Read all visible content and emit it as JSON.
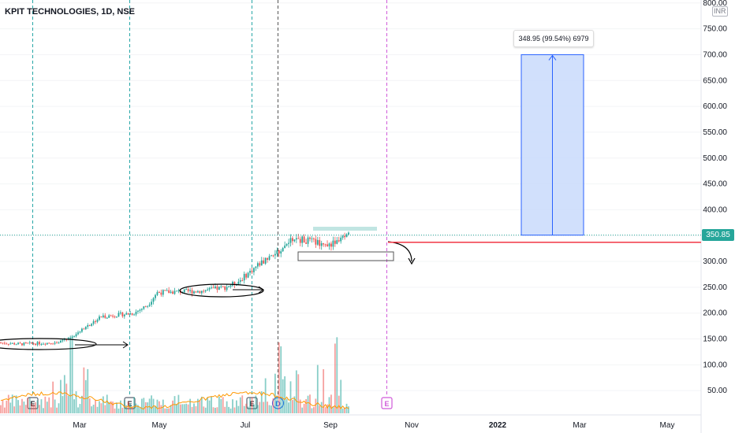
{
  "header": {
    "title": "KPIT TECHNOLOGIES, 1D, NSE",
    "currency": "INR"
  },
  "colors": {
    "up": "#26a69a",
    "down": "#ef5350",
    "ma": "#ff9800",
    "support": "#f23645",
    "measure_fill": "#c9dbfb",
    "measure_line": "#2962ff",
    "price_tag": "#26a69a",
    "earnings_dash": "#26a6a6",
    "dividend_dash": "#555555",
    "future_dash": "#d05ad9"
  },
  "last_price": "350.85",
  "measure": {
    "label": "348.95 (99.54%) 6979",
    "from": 350.85,
    "to": 700
  },
  "support_level": 337,
  "events": [
    {
      "label": "E",
      "x": "2021-02-10",
      "kind": "earnings"
    },
    {
      "label": "E",
      "x": "2021-04-22",
      "kind": "earnings"
    },
    {
      "label": "E",
      "x": "2021-07-20",
      "kind": "earnings"
    },
    {
      "label": "D",
      "x": "2021-08-08",
      "kind": "dividend"
    },
    {
      "label": "E",
      "x": "2021-10-27",
      "kind": "future-earnings"
    }
  ],
  "chart_data": {
    "type": "candlestick",
    "title": "KPIT TECHNOLOGIES, 1D, NSE",
    "xlabels": [
      "Mar",
      "May",
      "Jul",
      "Sep",
      "Nov",
      "2022",
      "Mar",
      "May"
    ],
    "yticks": [
      50,
      100,
      150,
      200,
      250,
      300,
      350,
      400,
      450,
      500,
      550,
      600,
      650,
      700,
      750,
      800
    ],
    "ylim": [
      0,
      800
    ],
    "price_path": [
      {
        "x": "2021-01-05",
        "y": 145
      },
      {
        "x": "2021-02-01",
        "y": 140
      },
      {
        "x": "2021-02-25",
        "y": 143
      },
      {
        "x": "2021-03-08",
        "y": 150
      },
      {
        "x": "2021-03-18",
        "y": 168
      },
      {
        "x": "2021-04-01",
        "y": 193
      },
      {
        "x": "2021-04-25",
        "y": 200
      },
      {
        "x": "2021-05-05",
        "y": 215
      },
      {
        "x": "2021-05-12",
        "y": 240
      },
      {
        "x": "2021-06-15",
        "y": 243
      },
      {
        "x": "2021-07-01",
        "y": 250
      },
      {
        "x": "2021-07-10",
        "y": 260
      },
      {
        "x": "2021-07-28",
        "y": 300
      },
      {
        "x": "2021-08-10",
        "y": 320
      },
      {
        "x": "2021-08-20",
        "y": 345
      },
      {
        "x": "2021-09-15",
        "y": 332
      },
      {
        "x": "2021-09-30",
        "y": 350
      }
    ],
    "volume_peaks": [
      "2021-03-10",
      "2021-08-10",
      "2021-09-20"
    ]
  }
}
